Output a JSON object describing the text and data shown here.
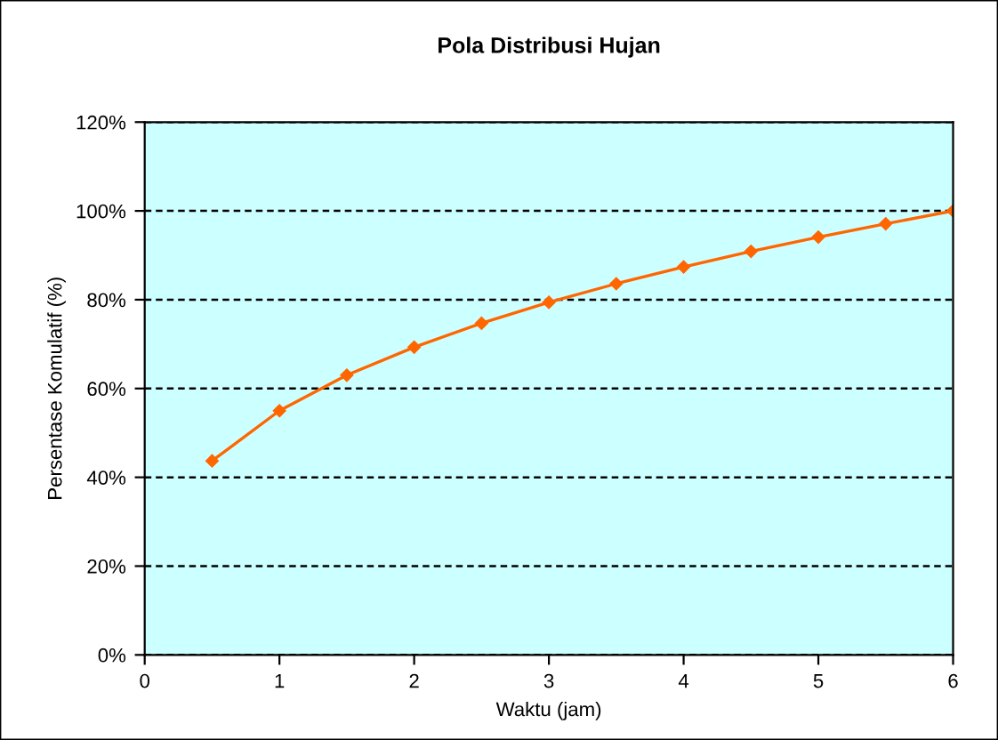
{
  "chart_data": {
    "type": "line",
    "title": "Pola Distribusi Hujan",
    "xlabel": "Waktu (jam)",
    "ylabel": "Persentase Komulatif (%)",
    "x": [
      0.5,
      1,
      1.5,
      2,
      2.5,
      3,
      3.5,
      4,
      4.5,
      5,
      5.5,
      6
    ],
    "series": [
      {
        "color": "#ff6600",
        "values": [
          43.7,
          55.0,
          63.0,
          69.3,
          74.7,
          79.4,
          83.6,
          87.4,
          90.9,
          94.1,
          97.1,
          100.0
        ]
      }
    ],
    "xlim": [
      0,
      6
    ],
    "xticks": [
      0,
      1,
      2,
      3,
      4,
      5,
      6
    ],
    "ylim": [
      0,
      120
    ],
    "yticks": [
      {
        "value": 0,
        "label": "0%"
      },
      {
        "value": 20,
        "label": "20%"
      },
      {
        "value": 40,
        "label": "40%"
      },
      {
        "value": 60,
        "label": "60%"
      },
      {
        "value": 80,
        "label": "80%"
      },
      {
        "value": 100,
        "label": "100%"
      },
      {
        "value": 120,
        "label": "120%"
      }
    ],
    "grid": "y",
    "marker": "diamond",
    "line_style": "solid",
    "legend": false
  }
}
